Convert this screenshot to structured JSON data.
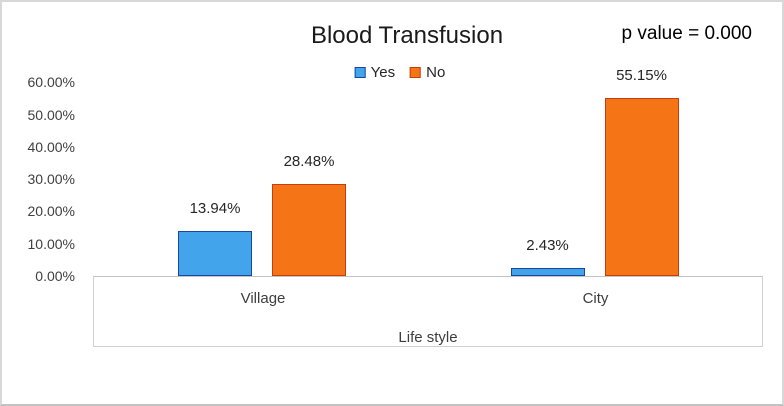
{
  "frame": {
    "background": "#ffffff",
    "border_color": "#d8d8d8"
  },
  "annotations": {
    "p_value": "p value = 0.000"
  },
  "chart_data": {
    "type": "bar",
    "title": "Blood Transfusion",
    "xlabel": "Life style",
    "ylabel": "",
    "categories": [
      "Village",
      "City"
    ],
    "series": [
      {
        "name": "Yes",
        "values": [
          13.94,
          2.43
        ],
        "fill": "#42a4eb",
        "border": "#1a469b"
      },
      {
        "name": "No",
        "values": [
          28.48,
          55.15
        ],
        "fill": "#f57416",
        "border": "#c83c0f"
      }
    ],
    "data_labels": [
      [
        "13.94%",
        "2.43%"
      ],
      [
        "28.48%",
        "55.15%"
      ]
    ],
    "y_axis": {
      "min": 0,
      "max": 60,
      "step": 10,
      "tick_labels": [
        "0.00%",
        "10.00%",
        "20.00%",
        "30.00%",
        "40.00%",
        "50.00%",
        "60.00%"
      ]
    },
    "legend_position": "top-center",
    "grid": false
  }
}
